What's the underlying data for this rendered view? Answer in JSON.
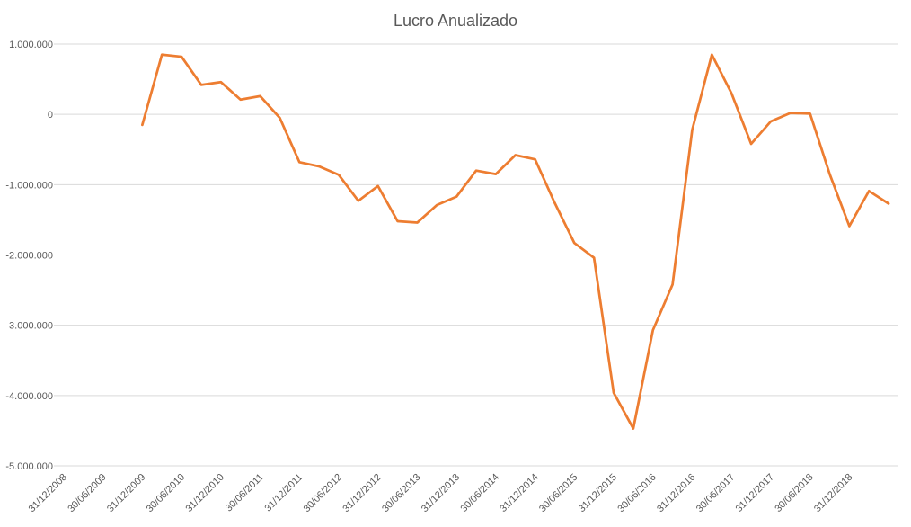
{
  "chart_data": {
    "type": "line",
    "title": "Lucro Anualizado",
    "xlabel": "",
    "ylabel": "",
    "ylim": [
      -5000000,
      1000000
    ],
    "y_ticks": [
      1000000,
      0,
      -1000000,
      -2000000,
      -3000000,
      -4000000,
      -5000000
    ],
    "y_tick_labels": [
      "1.000.000",
      "0",
      "-1.000.000",
      "-2.000.000",
      "-3.000.000",
      "-4.000.000",
      "-5.000.000"
    ],
    "x_tick_labels": [
      "31/12/2008",
      "30/06/2009",
      "31/12/2009",
      "30/06/2010",
      "31/12/2010",
      "30/06/2011",
      "31/12/2011",
      "30/06/2012",
      "31/12/2012",
      "30/06/2013",
      "31/12/2013",
      "30/06/2014",
      "31/12/2014",
      "30/06/2015",
      "31/12/2015",
      "30/06/2016",
      "31/12/2016",
      "30/06/2017",
      "31/12/2017",
      "30/06/2018",
      "31/12/2018"
    ],
    "grid": true,
    "legend": "none",
    "line_color": "#ed7d31",
    "series": [
      {
        "values": [
          null,
          null,
          null,
          null,
          -150000,
          850000,
          820000,
          420000,
          460000,
          210000,
          260000,
          -50000,
          -680000,
          -740000,
          -860000,
          -1230000,
          -1020000,
          -1520000,
          -1540000,
          -1290000,
          -1170000,
          -800000,
          -850000,
          -580000,
          -640000,
          -1260000,
          -1830000,
          -2040000,
          -3960000,
          -4470000,
          -3070000,
          -2420000,
          -220000,
          850000,
          300000,
          -420000,
          -100000,
          20000,
          10000,
          -850000,
          -1590000,
          -1090000,
          -1270000
        ]
      }
    ]
  }
}
